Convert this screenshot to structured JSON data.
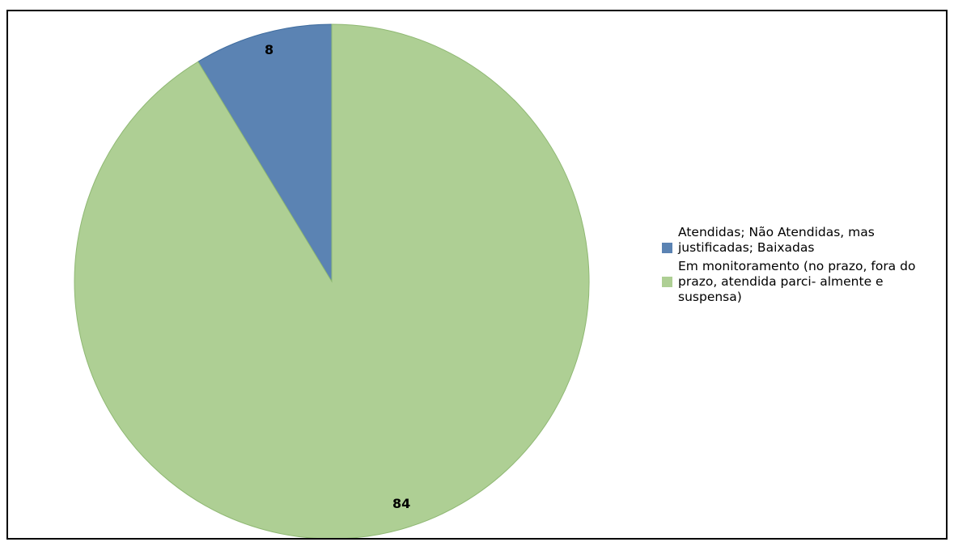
{
  "chart_data": {
    "type": "pie",
    "title": "",
    "slices": [
      {
        "label": "Atendidas; Não Atendidas, mas justificadas; Baixadas",
        "value": 8,
        "data_label": "8",
        "color": "#5b83b3"
      },
      {
        "label": "Em monitoramento (no prazo, fora do prazo, atendida parci- almente e suspensa)",
        "value": 84,
        "data_label": "84",
        "color": "#aecf94"
      }
    ],
    "legend_position": "right",
    "start_angle": "12 o'clock",
    "direction": "counterclockwise"
  }
}
